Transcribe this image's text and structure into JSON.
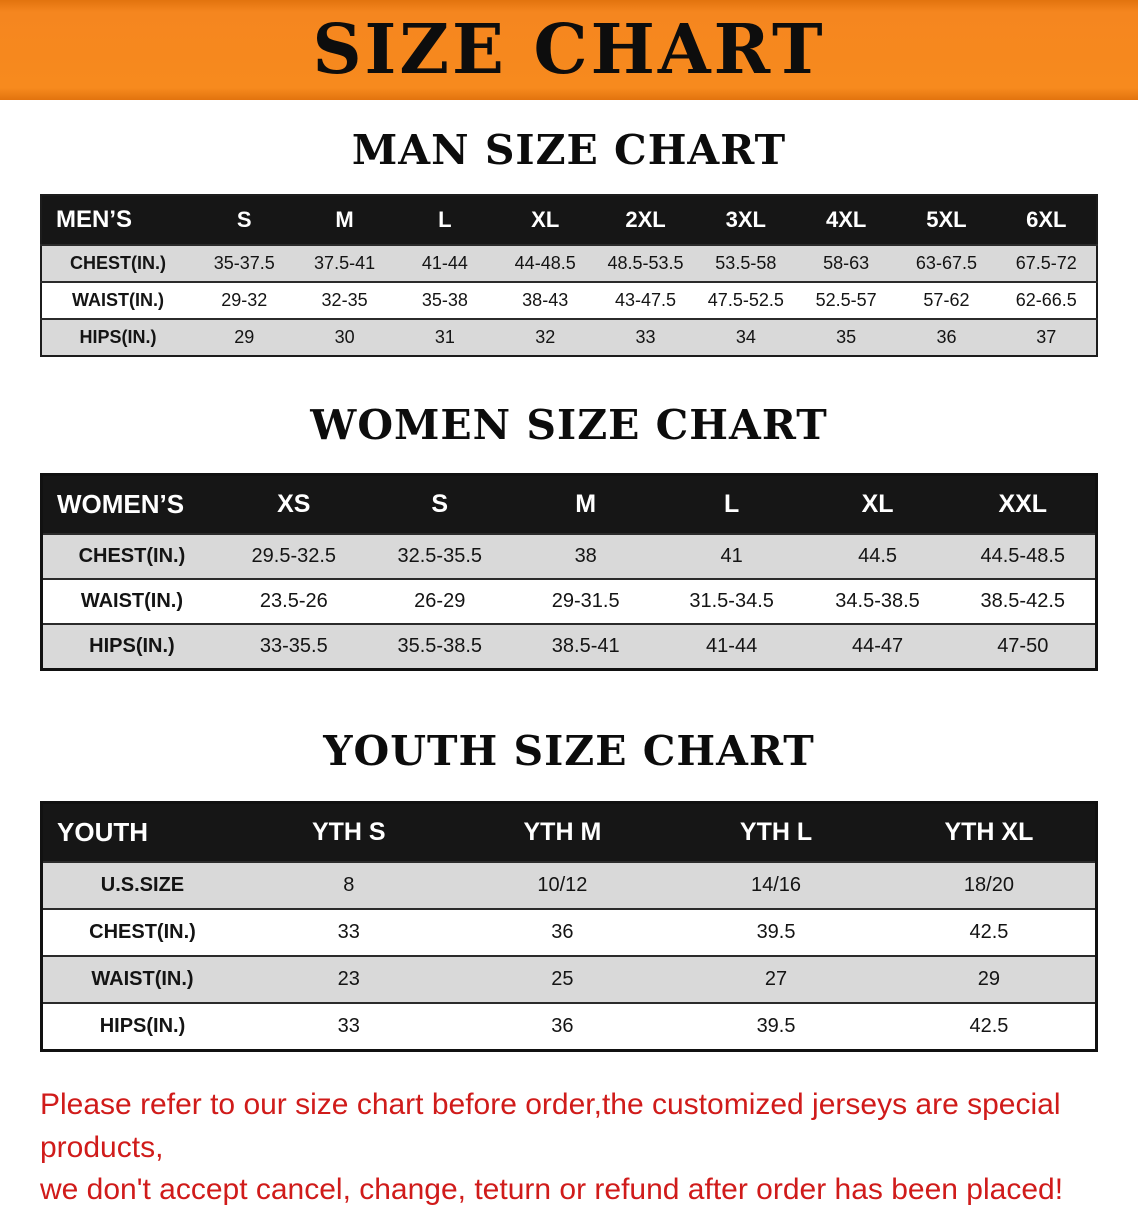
{
  "banner": {
    "title": "SIZE CHART"
  },
  "men": {
    "heading": "MAN SIZE CHART",
    "table": {
      "header": [
        "MEN’S",
        "S",
        "M",
        "L",
        "XL",
        "2XL",
        "3XL",
        "4XL",
        "5XL",
        "6XL"
      ],
      "rows": [
        [
          "CHEST(IN.)",
          "35-37.5",
          "37.5-41",
          "41-44",
          "44-48.5",
          "48.5-53.5",
          "53.5-58",
          "58-63",
          "63-67.5",
          "67.5-72"
        ],
        [
          "WAIST(IN.)",
          "29-32",
          "32-35",
          "35-38",
          "38-43",
          "43-47.5",
          "47.5-52.5",
          "52.5-57",
          "57-62",
          "62-66.5"
        ],
        [
          "HIPS(IN.)",
          "29",
          "30",
          "31",
          "32",
          "33",
          "34",
          "35",
          "36",
          "37"
        ]
      ]
    }
  },
  "women": {
    "heading": "WOMEN SIZE CHART",
    "table": {
      "header": [
        "WOMEN’S",
        "XS",
        "S",
        "M",
        "L",
        "XL",
        "XXL"
      ],
      "rows": [
        [
          "CHEST(IN.)",
          "29.5-32.5",
          "32.5-35.5",
          "38",
          "41",
          "44.5",
          "44.5-48.5"
        ],
        [
          "WAIST(IN.)",
          "23.5-26",
          "26-29",
          "29-31.5",
          "31.5-34.5",
          "34.5-38.5",
          "38.5-42.5"
        ],
        [
          "HIPS(IN.)",
          "33-35.5",
          "35.5-38.5",
          "38.5-41",
          "41-44",
          "44-47",
          "47-50"
        ]
      ]
    }
  },
  "youth": {
    "heading": "YOUTH SIZE CHART",
    "table": {
      "header": [
        "YOUTH",
        "YTH S",
        "YTH M",
        "YTH L",
        "YTH XL"
      ],
      "rows": [
        [
          "U.S.SIZE",
          "8",
          "10/12",
          "14/16",
          "18/20"
        ],
        [
          "CHEST(IN.)",
          "33",
          "36",
          "39.5",
          "42.5"
        ],
        [
          "WAIST(IN.)",
          "23",
          "25",
          "27",
          "29"
        ],
        [
          "HIPS(IN.)",
          "33",
          "36",
          "39.5",
          "42.5"
        ]
      ]
    }
  },
  "footer": {
    "line1": "Please refer to our size chart before order,the customized jerseys are special products,",
    "line2": "we don't accept cancel, change, teturn or refund after order has been placed!"
  },
  "colors": {
    "banner_orange": "#f5861f",
    "table_header_black": "#161616",
    "row_gray": "#d9d9d9",
    "note_red": "#d01b1a"
  }
}
